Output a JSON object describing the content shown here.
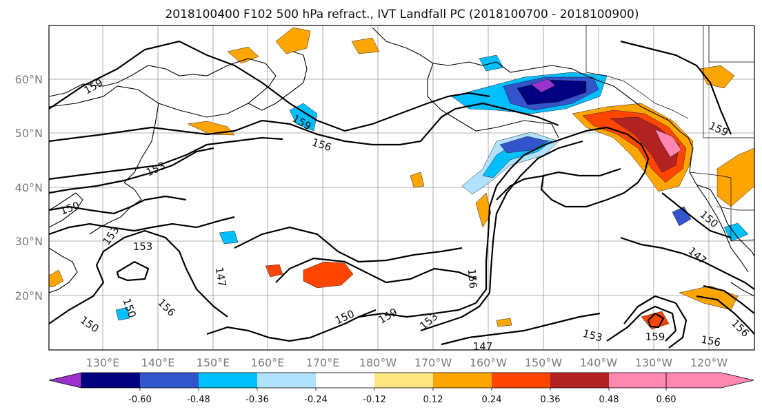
{
  "title": "2018100400 F102 500 hPa refract., IVT Landfall PC (2018100700 - 2018100900)",
  "lat_ticks": [
    "60°N",
    "50°N",
    "40°N",
    "30°N",
    "20°N"
  ],
  "lon_ticks": [
    "130°E",
    "140°E",
    "150°E",
    "160°E",
    "170°E",
    "180°W",
    "170°W",
    "160°W",
    "150°W",
    "140°W",
    "130°W",
    "120°W"
  ],
  "colorbar": {
    "colors": [
      "#9933cc",
      "#000080",
      "#3355cc",
      "#00bfff",
      "#b0e2ff",
      "#ffffff",
      "#ffe680",
      "#ffa500",
      "#ff4500",
      "#b22222",
      "#ff88b0"
    ],
    "tick_labels": [
      "-0.60",
      "-0.48",
      "-0.36",
      "-0.24",
      "-0.12",
      "0.12",
      "0.24",
      "0.36",
      "0.48",
      "0.60"
    ]
  },
  "contour_labels": [
    "159",
    "159",
    "156",
    "153",
    "150",
    "153",
    "153",
    "147",
    "150",
    "156",
    "150",
    "159",
    "153",
    "156",
    "147",
    "150",
    "153",
    "159",
    "156",
    "156",
    "150",
    "147",
    "159"
  ]
}
